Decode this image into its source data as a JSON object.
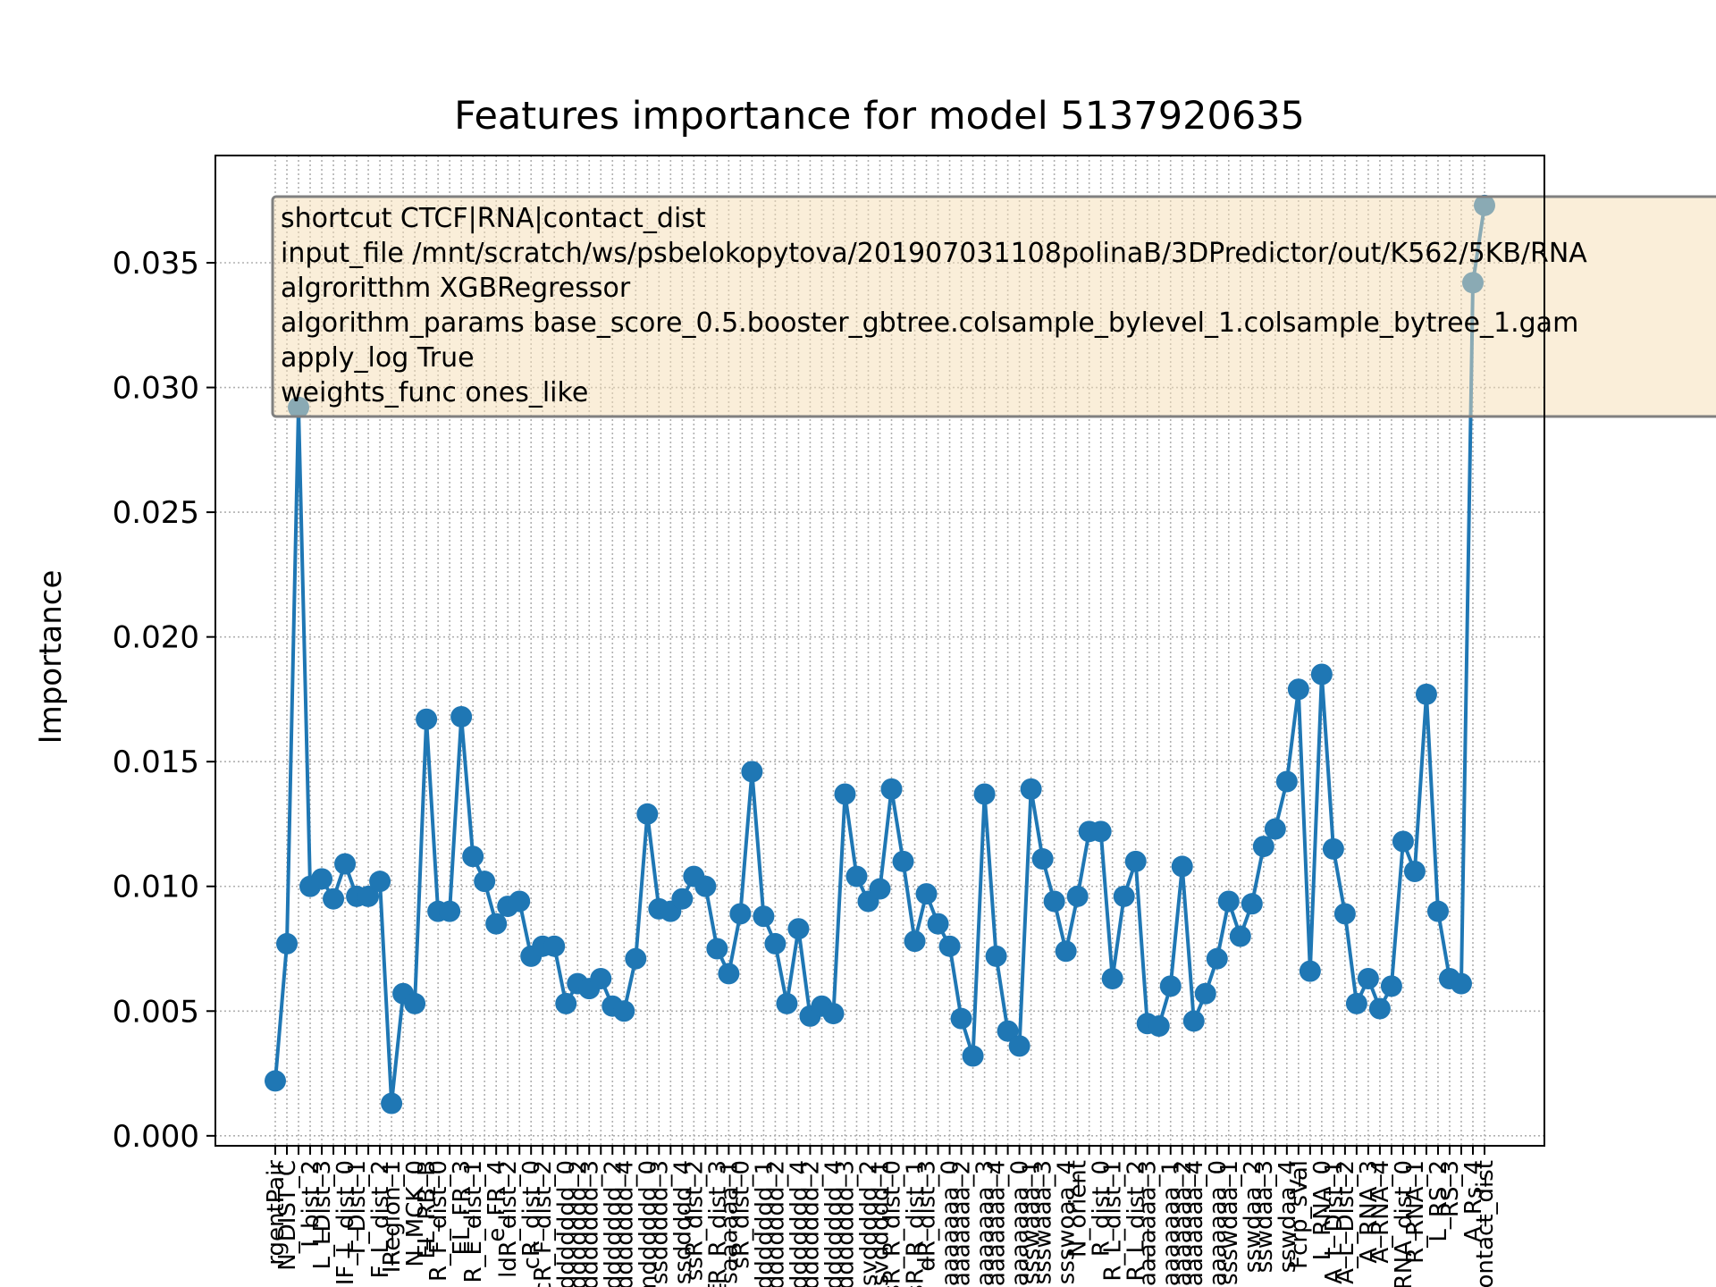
{
  "chart_data": {
    "type": "line",
    "title": "Features importance for model 5137920635",
    "xlabel": "",
    "ylabel": "Importance",
    "ylim": [
      -0.0004,
      0.0393
    ],
    "yticks": [
      0.0,
      0.005,
      0.01,
      0.015,
      0.02,
      0.025,
      0.03,
      0.035
    ],
    "ytick_labels": [
      "0.000",
      "0.005",
      "0.010",
      "0.015",
      "0.020",
      "0.025",
      "0.030",
      "0.035"
    ],
    "grid": true,
    "marker": "circle",
    "color": "#1f77b4",
    "x_tick_labels_visible": [
      "rgentPair",
      "N_DIST_C",
      "I_bist_2",
      "L_LDist_3",
      "IF_L_dist_0",
      "T_Dist_1",
      "F_L_dist_2",
      "IRegion_1",
      "N_MCK_0",
      "EL_RB_B",
      "R_F_dist_0",
      "EL_FR_3",
      "R_E_dist_1",
      "e_FR_4",
      "ldR_dist_2",
      "cR_dist_0",
      "cR_F_dist_2",
      "ddddddd_0",
      "ddddddd_2",
      "dddddddd_3",
      "ddddddd_2",
      "ddddddd_4",
      "mdddddd_0",
      "ssddddd_3",
      "ssddddd_4",
      "ssR_dist_2",
      "fR_R_dist_3",
      "fsaaaaaa_1",
      "sR_dist_0",
      "dddddddd_1",
      "ddddddddd_2",
      "ddddddddd_4",
      "dddddddddd_2",
      "sddddddd_4",
      "sddddddd_3",
      "svddddd_2",
      "svddddd_1",
      "sR_R_dist_0",
      "sR_R_dist_1",
      "dR_dist_3",
      "aaaaaaaa_0",
      "aaaaaaaaa_2",
      "aaaaaaaaa_3",
      "aaaaaaaaa_4",
      "aaaaaaaa_0",
      "ssswaaa_1",
      "ssswaaa_3",
      "ssswoaa_4",
      "N_orient",
      "R_dist_0",
      "R_L_dist_1",
      "R_L_dist_2",
      "aaaaaaaa_3",
      "aaaaaaaa_1",
      "aaaaaaaa_2",
      "aaaaaaaa_4",
      "aaaaaaaa_0",
      "ssswdaa_1",
      "sswdaa_2",
      "sswdaa_3",
      "sswdaa_4",
      "Fcrp_sVal",
      "L_RNA_0",
      "A_L_Dist_1",
      "A_L_Dist_2",
      "A_RNA_3",
      "A_RNA_4",
      "RNA_dist_0",
      "R_RNA_1",
      "L_RS_2",
      "RS_3",
      "A_Rs_4",
      "ontact_dist"
    ],
    "x": [
      1,
      2,
      3,
      4,
      5,
      6,
      7,
      8,
      9,
      10,
      11,
      12,
      13,
      14,
      15,
      16,
      17,
      18,
      19,
      20,
      21,
      22,
      23,
      24,
      25,
      26,
      27,
      28,
      29,
      30,
      31,
      32,
      33,
      34,
      35,
      36,
      37,
      38,
      39,
      40,
      41,
      42,
      43,
      44,
      45,
      46,
      47,
      48,
      49,
      50,
      51,
      52,
      53,
      54,
      55,
      56,
      57,
      58,
      59,
      60,
      61,
      62,
      63,
      64,
      65,
      66,
      67,
      68,
      69,
      70,
      71,
      72,
      73,
      74,
      75,
      76,
      77,
      78,
      79,
      80,
      81,
      82,
      83,
      84,
      85,
      86,
      87,
      88,
      89,
      90,
      91,
      92,
      93,
      94,
      95,
      96,
      97,
      98,
      99,
      100,
      101,
      102,
      103,
      104,
      105
    ],
    "values": [
      0.0022,
      0.0077,
      0.0292,
      0.01,
      0.0103,
      0.0095,
      0.0109,
      0.0096,
      0.0096,
      0.0102,
      0.0013,
      0.0057,
      0.0053,
      0.0167,
      0.009,
      0.009,
      0.0168,
      0.0112,
      0.0102,
      0.0085,
      0.0092,
      0.0094,
      0.0072,
      0.0076,
      0.0076,
      0.0053,
      0.0061,
      0.0059,
      0.0063,
      0.0052,
      0.005,
      0.0071,
      0.0129,
      0.0091,
      0.009,
      0.0095,
      0.0104,
      0.01,
      0.0075,
      0.0065,
      0.0089,
      0.0146,
      0.0088,
      0.0077,
      0.0053,
      0.0083,
      0.0048,
      0.0052,
      0.0049,
      0.0137,
      0.0104,
      0.0094,
      0.0099,
      0.0139,
      0.011,
      0.0078,
      0.0097,
      0.0085,
      0.0076,
      0.0047,
      0.0032,
      0.0137,
      0.0072,
      0.0042,
      0.0036,
      0.0139,
      0.0111,
      0.0094,
      0.0074,
      0.0096,
      0.0122,
      0.0122,
      0.0063,
      0.0096,
      0.011,
      0.0045,
      0.0044,
      0.006,
      0.0108,
      0.0046,
      0.0057,
      0.0071,
      0.0094,
      0.008,
      0.0093,
      0.0116,
      0.0123,
      0.0142,
      0.0179,
      0.0066,
      0.0185,
      0.0115,
      0.0089,
      0.0053,
      0.0063,
      0.0051,
      0.006,
      0.0118,
      0.0106,
      0.0177,
      0.009,
      0.0063,
      0.0061,
      0.0342,
      0.0373
    ]
  },
  "annotation": {
    "lines": [
      "shortcut CTCF|RNA|contact_dist",
      "input_file /mnt/scratch/ws/psbelokopytova/201907031108polinaB/3DPredictor/out/K562/5KB/RNA",
      "algroritthm XGBRegressor",
      "algorithm_params base_score_0.5.booster_gbtree.colsample_bylevel_1.colsample_bytree_1.gam",
      "apply_log True",
      "weights_func ones_like"
    ],
    "background": "#f5deb3",
    "border": "#808080"
  }
}
